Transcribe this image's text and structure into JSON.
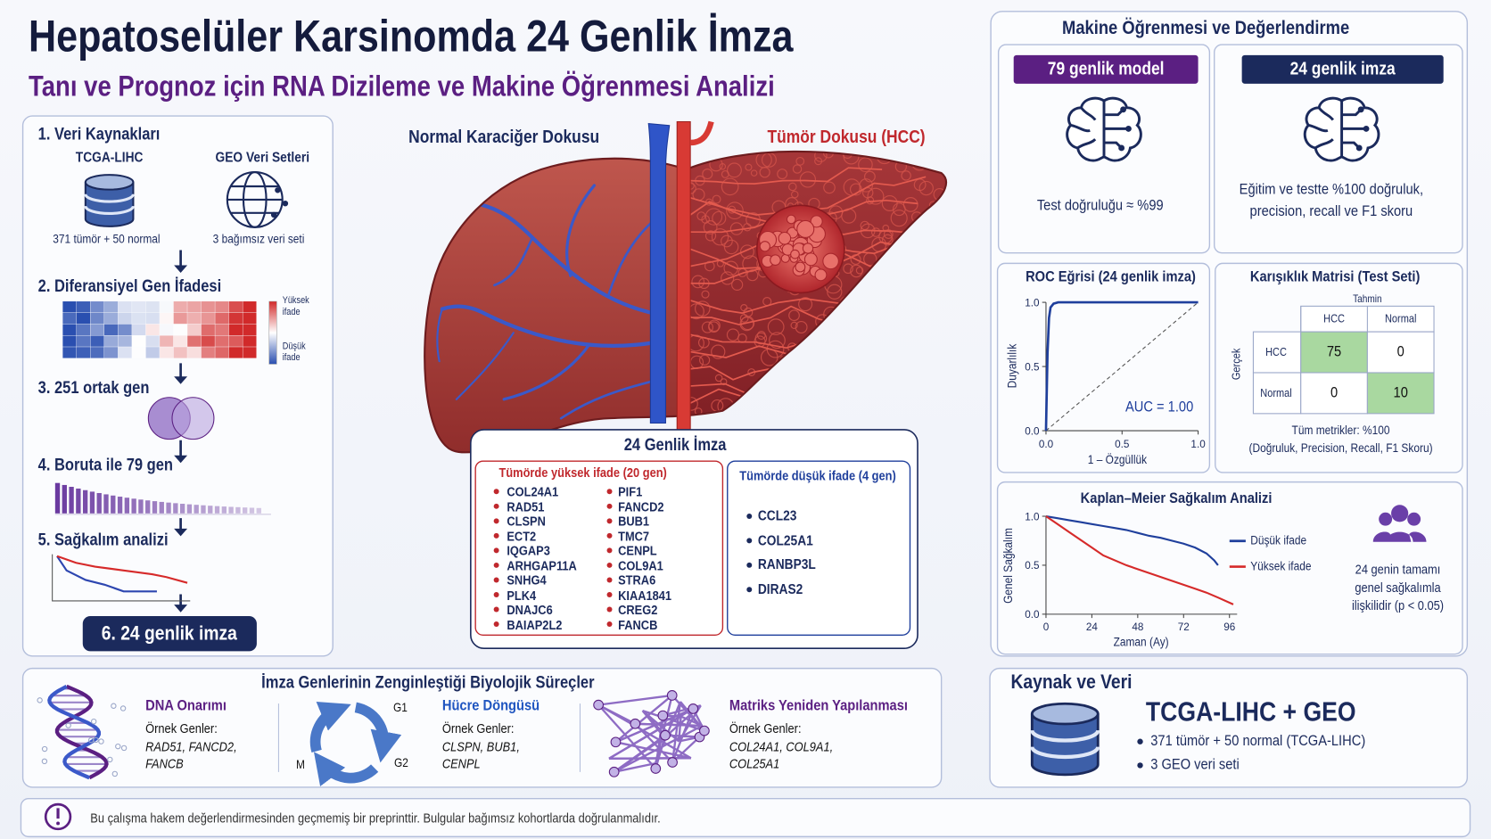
{
  "header": {
    "title": "Hepatoselüler Karsinomda 24 Genlik İmza",
    "subtitle": "Tanı ve Prognoz için RNA Dizileme ve Makine Öğrenmesi Analizi"
  },
  "pipeline": {
    "step1": {
      "title": "1. Veri Kaynakları",
      "sources": [
        {
          "name": "TCGA-LIHC",
          "detail": "371 tümör + 50 normal"
        },
        {
          "name": "GEO Veri Setleri",
          "detail": "3 bağımsız veri seti"
        }
      ]
    },
    "step2": {
      "title": "2. Diferansiyel Gen İfadesi",
      "legend_high": "Yüksek ifade",
      "legend_low": "Düşük ifade"
    },
    "step3": {
      "title": "3. 251 ortak gen"
    },
    "step4": {
      "title": "4. Boruta ile 79 gen"
    },
    "step5": {
      "title": "5. Sağkalım analizi"
    },
    "step6": {
      "title": "6. 24 genlik imza"
    }
  },
  "liver": {
    "normal_label": "Normal Karaciğer Dokusu",
    "tumor_label": "Tümör Dokusu (HCC)"
  },
  "signature": {
    "title": "24 Genlik İmza",
    "high": {
      "title": "Tümörde yüksek ifade (20 gen)",
      "genes": [
        "COL24A1",
        "RAD51",
        "CLSPN",
        "ECT2",
        "IQGAP3",
        "ARHGAP11A",
        "SNHG4",
        "PLK4",
        "DNAJC6",
        "BAIAP2L2",
        "PIF1",
        "FANCD2",
        "BUB1",
        "TMC7",
        "CENPL",
        "COL9A1",
        "STRA6",
        "KIAA1841",
        "CREG2",
        "FANCB"
      ]
    },
    "low": {
      "title": "Tümörde düşük ifade (4 gen)",
      "genes": [
        "CCL23",
        "COL25A1",
        "RANBP3L",
        "DIRAS2"
      ]
    }
  },
  "ml": {
    "title": "Makine Öğrenmesi ve Değerlendirme",
    "models": [
      {
        "name": "79 genlik model",
        "color": "#5b1f82",
        "result": "Test doğruluğu ≈ %99"
      },
      {
        "name": "24 genlik imza",
        "color": "#1b2a5c",
        "result": "Eğitim ve testte %100 doğruluk, precision, recall ve F1 skoru"
      }
    ],
    "roc": {
      "title": "ROC Eğrisi (24 genlik imza)",
      "ylabel": "Duyarlılık",
      "xlabel": "1 – Özgüllük",
      "xlim": [
        0,
        1
      ],
      "ylim": [
        0,
        1
      ],
      "xticks": [
        {
          "value": 0,
          "label": "0.0"
        },
        {
          "value": 0.5,
          "label": "0.5"
        },
        {
          "value": 1,
          "label": "1.0"
        }
      ],
      "yticks": [
        {
          "value": 0,
          "label": "0.0"
        },
        {
          "value": 0.5,
          "label": "0.5"
        },
        {
          "value": 1,
          "label": "1.0"
        }
      ],
      "x": [
        0,
        0.01,
        0.02,
        0.03,
        0.05,
        0.08,
        0.15,
        1
      ],
      "y": [
        0,
        0.6,
        0.88,
        0.96,
        0.99,
        1,
        1,
        1
      ],
      "color": "#1f3f9c",
      "annotation": "AUC = 1.00"
    },
    "confusion": {
      "title": "Karışıklık Matrisi (Test Seti)",
      "predicted_label": "Tahmin",
      "actual_label": "Gerçek",
      "columns": [
        "HCC",
        "Normal"
      ],
      "rows": [
        {
          "label": "HCC",
          "values": [
            75,
            0
          ]
        },
        {
          "label": "Normal",
          "values": [
            0,
            10
          ]
        }
      ],
      "summary": "Tüm metrikler: %100",
      "summary_detail": "(Doğruluk, Precision, Recall, F1 Skoru)"
    },
    "km": {
      "title": "Kaplan–Meier Sağkalım Analizi",
      "ylabel": "Genel Sağkalım",
      "xlabel": "Zaman (Ay)",
      "xlim": [
        0,
        100
      ],
      "ylim": [
        0,
        1
      ],
      "xticks": [
        0,
        24,
        48,
        72,
        96
      ],
      "yticks": [
        {
          "value": 0,
          "label": "0.0"
        },
        {
          "value": 0.5,
          "label": "0.5"
        },
        {
          "value": 1,
          "label": "1.0"
        }
      ],
      "series": [
        {
          "name": "Düşük ifade",
          "color": "#1f3f9c",
          "x": [
            0,
            6,
            12,
            18,
            24,
            30,
            36,
            42,
            48,
            54,
            60,
            66,
            72,
            78,
            84,
            88,
            90
          ],
          "y": [
            1,
            0.98,
            0.96,
            0.94,
            0.92,
            0.9,
            0.88,
            0.86,
            0.83,
            0.8,
            0.78,
            0.75,
            0.72,
            0.68,
            0.62,
            0.55,
            0.5
          ]
        },
        {
          "name": "Yüksek ifade",
          "color": "#d62a2a",
          "x": [
            0,
            6,
            12,
            18,
            24,
            30,
            36,
            42,
            48,
            54,
            60,
            66,
            72,
            78,
            84,
            90,
            98
          ],
          "y": [
            1,
            0.92,
            0.84,
            0.76,
            0.68,
            0.6,
            0.55,
            0.5,
            0.46,
            0.42,
            0.38,
            0.34,
            0.3,
            0.26,
            0.22,
            0.17,
            0.1
          ]
        }
      ],
      "note": "24 genin tamamı genel sağkalımla ilişkilidir (p < 0.05)"
    }
  },
  "processes": {
    "title": "İmza Genlerinin Zenginleştiği Biyolojik Süreçler",
    "items": [
      {
        "name": "DNA Onarımı",
        "color": "#5b1f82",
        "label": "Örnek Genler:",
        "genes": "RAD51, FANCD2, FANCB"
      },
      {
        "name": "Hücre Döngüsü",
        "color": "#1f55c0",
        "label": "Örnek Genler:",
        "genes": "CLSPN, BUB1, CENPL"
      },
      {
        "name": "Matriks Yeniden Yapılanması",
        "color": "#5b1f82",
        "label": "Örnek Genler:",
        "genes": "COL24A1, COL9A1, COL25A1"
      }
    ],
    "cycle_phases": [
      "G1",
      "G2",
      "M"
    ]
  },
  "source": {
    "title": "Kaynak ve Veri",
    "headline": "TCGA-LIHC + GEO",
    "bullets": [
      "371 tümör + 50 normal (TCGA-LIHC)",
      "3 GEO veri seti"
    ]
  },
  "footer": {
    "note": "Bu çalışma hakem değerlendirmesinden geçmemiş bir preprinttir. Bulgular bağımsız kohortlarda doğrulanmalıdır."
  }
}
